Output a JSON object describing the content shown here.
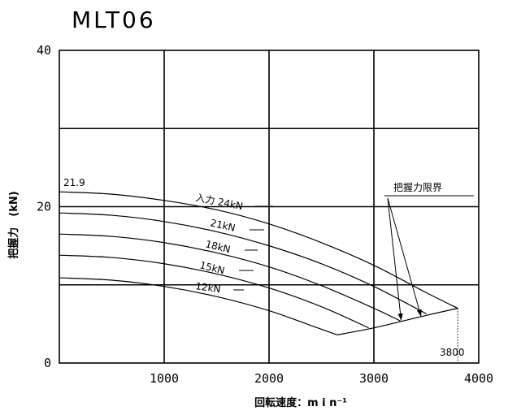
{
  "chart_data": {
    "type": "line",
    "title": "MLT06",
    "xlabel": "回転速度：m i n⁻¹",
    "ylabel": "把握力　(kN)",
    "xlim": [
      0,
      4000
    ],
    "ylim": [
      0,
      40
    ],
    "x_ticks": [
      "1000",
      "2000",
      "3000",
      "4000"
    ],
    "y_ticks": [
      "0",
      "20",
      "40"
    ],
    "grid": true,
    "series": [
      {
        "name": "入力 24kN",
        "points": [
          [
            0,
            21.9
          ],
          [
            500,
            21.6
          ],
          [
            1000,
            20.8
          ],
          [
            1500,
            19.6
          ],
          [
            2000,
            17.8
          ],
          [
            2500,
            15.4
          ],
          [
            3000,
            12.5
          ],
          [
            3500,
            9.0
          ],
          [
            3800,
            7.0
          ]
        ]
      },
      {
        "name": "21kN",
        "points": [
          [
            0,
            19.2
          ],
          [
            500,
            18.9
          ],
          [
            1000,
            18.1
          ],
          [
            1500,
            16.8
          ],
          [
            2000,
            15.0
          ],
          [
            2500,
            12.7
          ],
          [
            3000,
            9.8
          ],
          [
            3500,
            6.3
          ]
        ]
      },
      {
        "name": "18kN",
        "points": [
          [
            0,
            16.5
          ],
          [
            500,
            16.2
          ],
          [
            1000,
            15.4
          ],
          [
            1500,
            14.1
          ],
          [
            2000,
            12.3
          ],
          [
            2500,
            9.9
          ],
          [
            3000,
            7.0
          ],
          [
            3250,
            5.4
          ]
        ]
      },
      {
        "name": "15kN",
        "points": [
          [
            0,
            13.8
          ],
          [
            500,
            13.5
          ],
          [
            1000,
            12.7
          ],
          [
            1500,
            11.4
          ],
          [
            2000,
            9.6
          ],
          [
            2500,
            7.2
          ],
          [
            2950,
            4.5
          ]
        ]
      },
      {
        "name": "12kN",
        "points": [
          [
            0,
            10.9
          ],
          [
            500,
            10.6
          ],
          [
            1000,
            9.8
          ],
          [
            1500,
            8.5
          ],
          [
            2000,
            6.7
          ],
          [
            2400,
            4.8
          ],
          [
            2650,
            3.6
          ]
        ]
      },
      {
        "name": "把握力限界",
        "points": [
          [
            2650,
            3.6
          ],
          [
            3000,
            4.5
          ],
          [
            3500,
            6.1
          ],
          [
            3800,
            7.0
          ]
        ]
      }
    ],
    "annotations": {
      "start_value": "21.9",
      "limit_label": "把握力限界",
      "max_speed_label": "3800",
      "curve_labels": [
        "入力 24kN",
        "21kN",
        "18kN",
        "15kN",
        "12kN"
      ]
    }
  }
}
